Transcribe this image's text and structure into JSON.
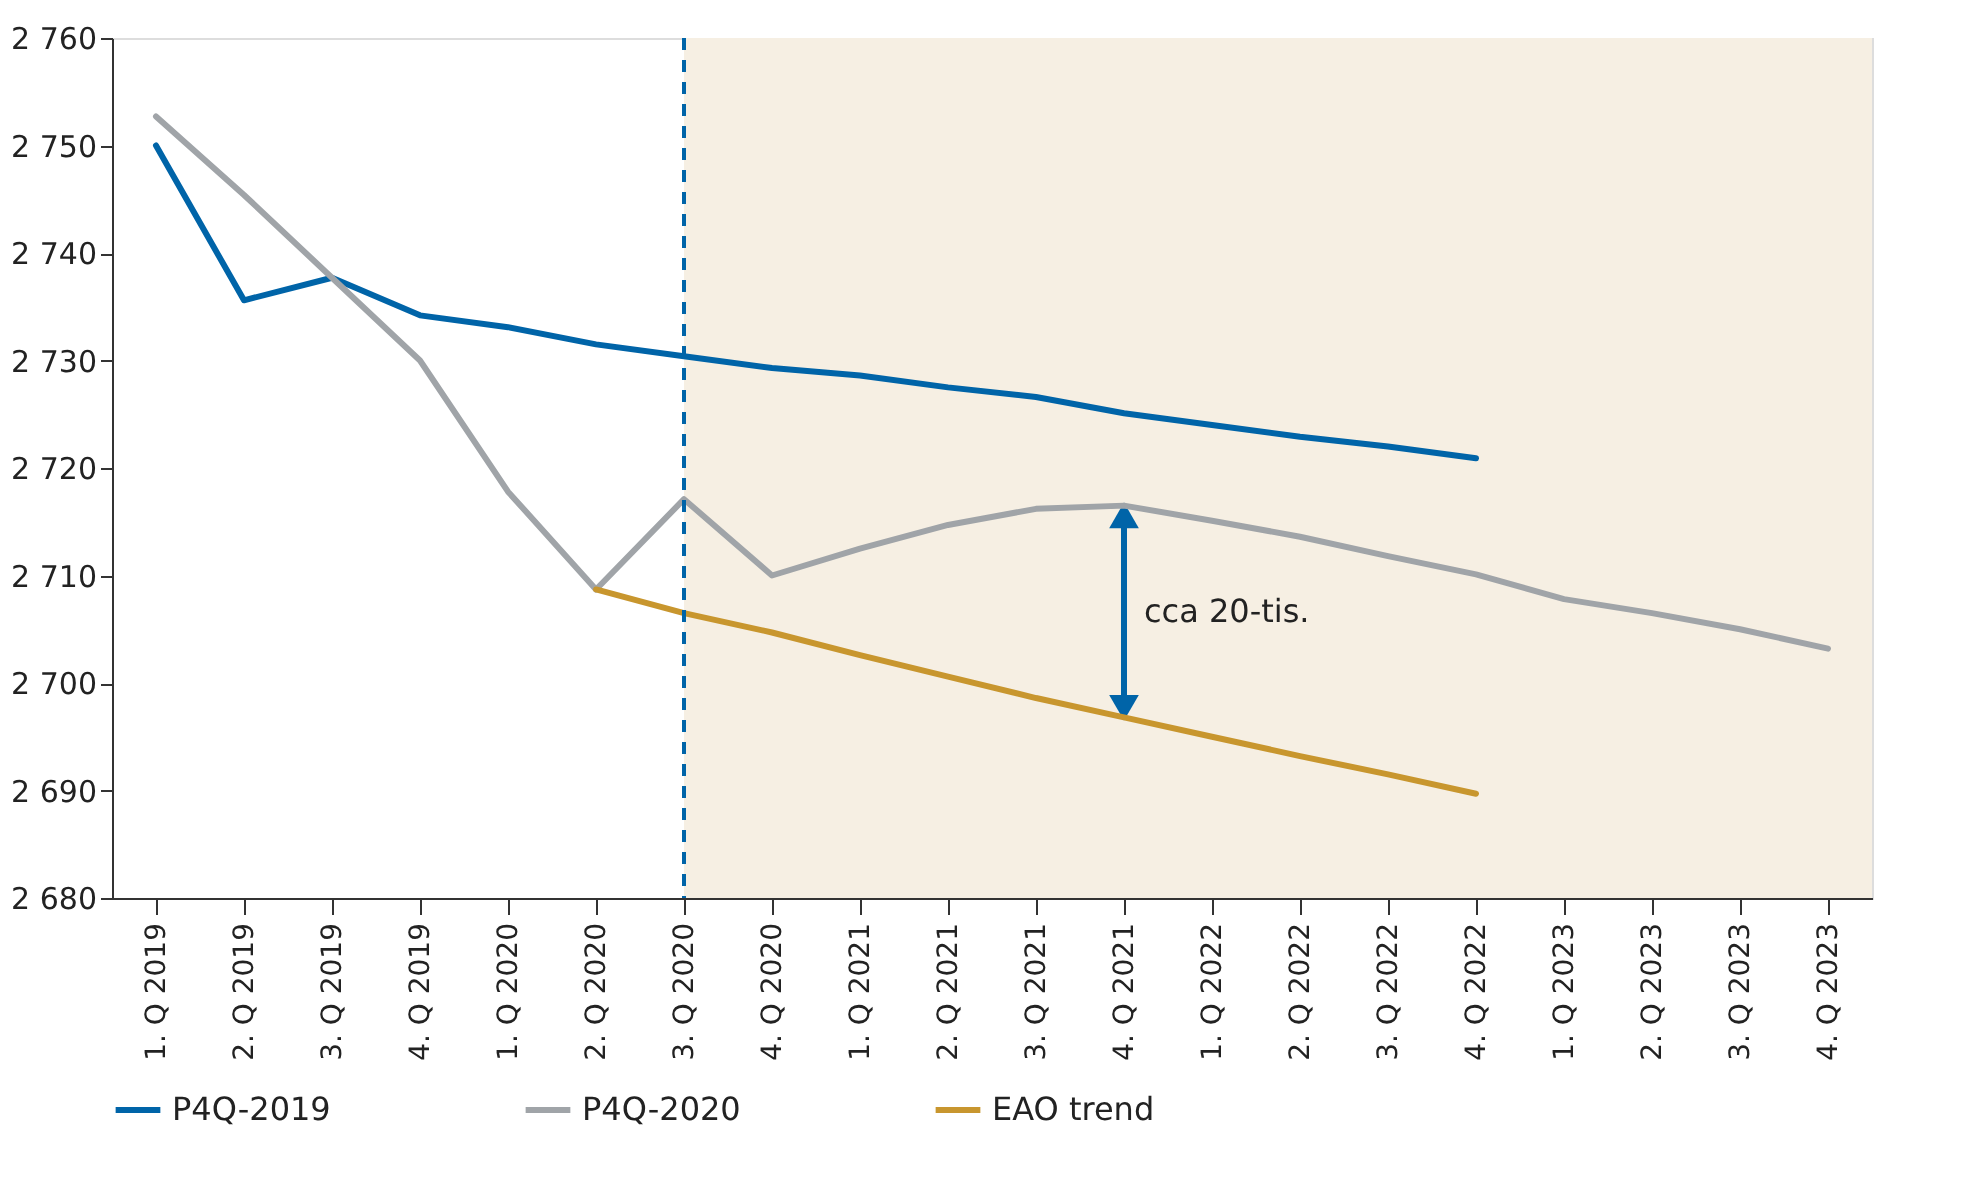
{
  "chart_data": {
    "type": "line",
    "categories": [
      "1. Q 2019",
      "2. Q 2019",
      "3. Q 2019",
      "4. Q 2019",
      "1. Q 2020",
      "2. Q 2020",
      "3. Q 2020",
      "4. Q 2020",
      "1. Q 2021",
      "2. Q 2021",
      "3. Q 2021",
      "4. Q 2021",
      "1. Q 2022",
      "2. Q 2022",
      "3. Q 2022",
      "4. Q 2022",
      "1. Q 2023",
      "2. Q 2023",
      "3. Q 2023",
      "4. Q 2023"
    ],
    "series": [
      {
        "name": "P4Q-2019",
        "color": "#0064a8",
        "values": [
          2750,
          2735.6,
          2737.7,
          2734.2,
          2733.1,
          2731.5,
          2730.4,
          2729.3,
          2728.6,
          2727.5,
          2726.6,
          2725.1,
          2724,
          2722.9,
          2722,
          2720.9,
          null,
          null,
          null,
          null
        ]
      },
      {
        "name": "P4Q-2020",
        "color": "#a0a4a8",
        "values": [
          2752.7,
          2745.4,
          2737.7,
          2730,
          2717.8,
          2708.7,
          2717.1,
          2710,
          2712.5,
          2714.7,
          2716.2,
          2716.5,
          2715.1,
          2713.6,
          2711.8,
          2710.1,
          2707.8,
          2706.5,
          2705,
          2703.2
        ]
      },
      {
        "name": "EAO trend",
        "color": "#c8962e",
        "values": [
          null,
          null,
          null,
          null,
          null,
          2708.7,
          2706.5,
          2704.7,
          2702.6,
          2700.6,
          2698.6,
          2696.8,
          2695,
          2693.2,
          2691.5,
          2689.7,
          null,
          null,
          null,
          null
        ]
      }
    ],
    "ylim": [
      2680,
      2760
    ],
    "yticks": [
      {
        "value": 2680,
        "label": "2 680"
      },
      {
        "value": 2690,
        "label": "2 690"
      },
      {
        "value": 2700,
        "label": "2 700"
      },
      {
        "value": 2710,
        "label": "2 710"
      },
      {
        "value": 2720,
        "label": "2 720"
      },
      {
        "value": 2730,
        "label": "2 730"
      },
      {
        "value": 2740,
        "label": "2 740"
      },
      {
        "value": 2750,
        "label": "2 750"
      },
      {
        "value": 2760,
        "label": "2 760"
      }
    ],
    "ref_lines": [
      {
        "axis": "x",
        "value": "3. Q 2020",
        "color": "#0064a8",
        "line_style": "dashed"
      }
    ],
    "bands": [
      {
        "axis": "x",
        "from": "3. Q 2020",
        "to": "4. Q 2023",
        "color": "#f6efe3"
      }
    ],
    "annotations": [
      "cca 20-tis."
    ],
    "legend": "bottom",
    "grid": false,
    "marker": "none",
    "line_style": "solid"
  }
}
